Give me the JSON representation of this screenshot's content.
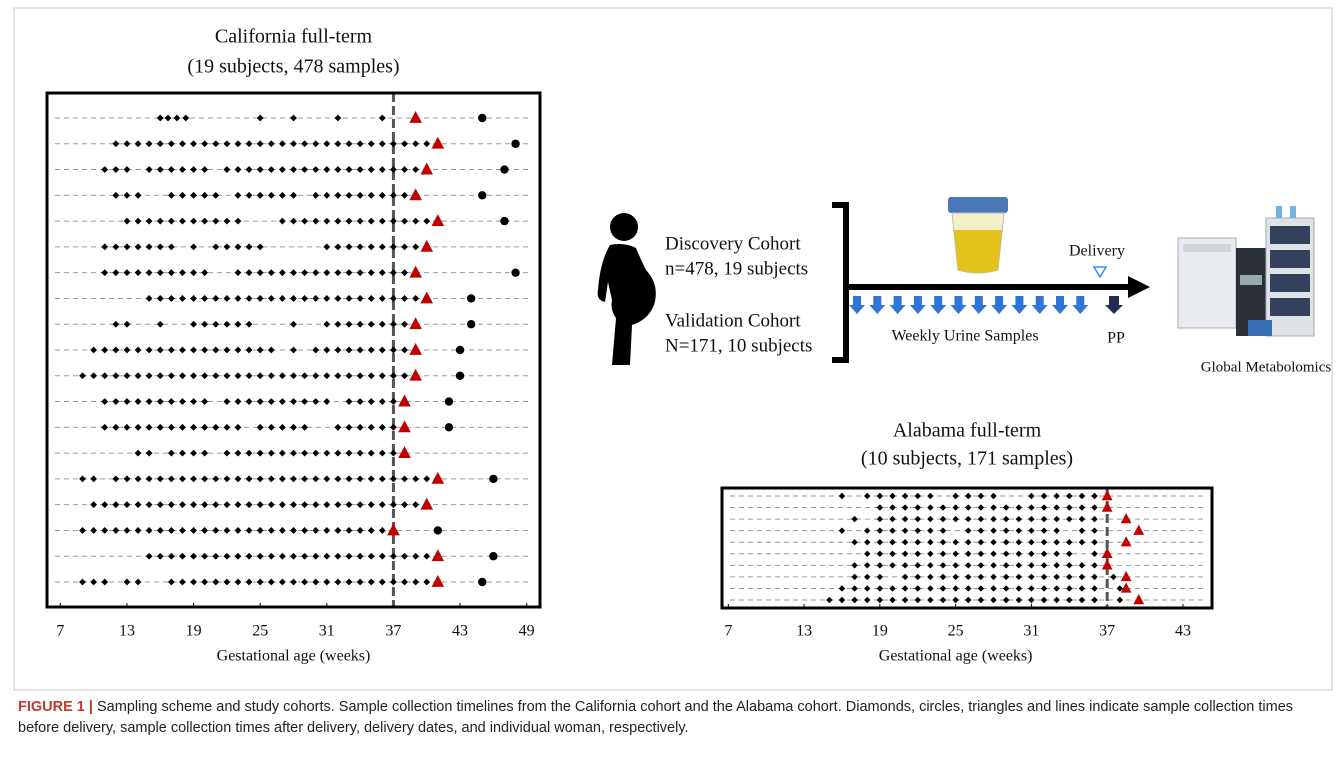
{
  "chart_data": [
    {
      "type": "scatter",
      "title": "California full-term",
      "subtitle": "(19 subjects, 478 samples)",
      "x_label": "Gestational age (weeks)",
      "xlim": [
        5.8,
        50.2
      ],
      "xticks": [
        7,
        13,
        19,
        25,
        31,
        37,
        43,
        49
      ],
      "vline": 37,
      "grid": true,
      "colors": {
        "diamond": "#000000",
        "delivery": "#c00000",
        "postpartum": "#000000"
      },
      "rows": [
        {
          "diamonds": [
            16,
            16.7,
            17.5,
            18.3,
            25,
            28,
            32,
            36
          ],
          "delivery": 39,
          "postpartum": 45
        },
        {
          "diamonds": [
            12,
            13,
            14,
            15,
            16,
            17,
            18,
            19,
            20,
            21,
            22,
            23,
            24,
            25,
            26,
            27,
            28,
            29,
            30,
            31,
            32,
            33,
            34,
            35,
            36,
            37,
            38,
            39,
            40
          ],
          "delivery": 41,
          "postpartum": 48
        },
        {
          "diamonds": [
            11,
            12,
            13,
            15,
            16,
            17,
            18,
            19,
            20,
            22,
            23,
            24,
            25,
            26,
            27,
            28,
            29,
            30,
            31,
            32,
            33,
            34,
            35,
            36,
            37,
            38,
            39
          ],
          "delivery": 40,
          "postpartum": 47
        },
        {
          "diamonds": [
            12,
            13,
            14,
            17,
            18,
            19,
            20,
            21,
            23,
            24,
            25,
            26,
            27,
            28,
            30,
            31,
            32,
            33,
            34,
            35,
            36,
            37,
            38
          ],
          "delivery": 39,
          "postpartum": 45
        },
        {
          "diamonds": [
            13,
            14,
            15,
            16,
            17,
            18,
            19,
            20,
            21,
            22,
            23,
            27,
            28,
            29,
            30,
            31,
            32,
            33,
            34,
            35,
            36,
            37,
            38,
            39,
            40
          ],
          "delivery": 41,
          "postpartum": 47
        },
        {
          "diamonds": [
            11,
            12,
            13,
            14,
            15,
            16,
            17,
            19,
            21,
            22,
            23,
            24,
            25,
            31,
            32,
            33,
            34,
            35,
            36,
            37,
            38,
            39
          ],
          "delivery": 40,
          "postpartum": null
        },
        {
          "diamonds": [
            11,
            12,
            13,
            14,
            15,
            16,
            17,
            18,
            19,
            20,
            23,
            24,
            25,
            26,
            27,
            28,
            29,
            30,
            31,
            32,
            33,
            34,
            35,
            36,
            37,
            38
          ],
          "delivery": 39,
          "postpartum": 48
        },
        {
          "diamonds": [
            15,
            16,
            17,
            18,
            19,
            20,
            21,
            22,
            23,
            24,
            25,
            26,
            27,
            28,
            29,
            30,
            31,
            32,
            33,
            34,
            35,
            36,
            37,
            38,
            39
          ],
          "delivery": 40,
          "postpartum": 44
        },
        {
          "diamonds": [
            12,
            13,
            16,
            19,
            20,
            21,
            22,
            23,
            24,
            28,
            31,
            32,
            33,
            34,
            35,
            36,
            37,
            38
          ],
          "delivery": 39,
          "postpartum": 44
        },
        {
          "diamonds": [
            10,
            11,
            12,
            13,
            14,
            15,
            16,
            17,
            18,
            19,
            20,
            21,
            22,
            23,
            24,
            25,
            26,
            28,
            30,
            31,
            32,
            33,
            34,
            35,
            36,
            37,
            38
          ],
          "delivery": 39,
          "postpartum": 43
        },
        {
          "diamonds": [
            9,
            10,
            11,
            12,
            13,
            14,
            15,
            16,
            17,
            18,
            19,
            20,
            21,
            22,
            23,
            24,
            25,
            26,
            27,
            28,
            29,
            30,
            31,
            32,
            33,
            34,
            35,
            36,
            37,
            38
          ],
          "delivery": 39,
          "postpartum": 43
        },
        {
          "diamonds": [
            11,
            12,
            13,
            14,
            15,
            16,
            17,
            18,
            19,
            20,
            22,
            23,
            24,
            25,
            26,
            27,
            28,
            29,
            30,
            31,
            33,
            34,
            35,
            36,
            37
          ],
          "delivery": 38,
          "postpartum": 42
        },
        {
          "diamonds": [
            11,
            12,
            13,
            14,
            15,
            16,
            17,
            18,
            19,
            20,
            21,
            22,
            23,
            25,
            26,
            27,
            28,
            29,
            32,
            33,
            34,
            35,
            36,
            37
          ],
          "delivery": 38,
          "postpartum": 42
        },
        {
          "diamonds": [
            14,
            15,
            17,
            18,
            19,
            20,
            22,
            23,
            24,
            25,
            26,
            27,
            28,
            29,
            30,
            31,
            32,
            33,
            34,
            35,
            36,
            37
          ],
          "delivery": 38,
          "postpartum": null
        },
        {
          "diamonds": [
            9,
            10,
            12,
            13,
            14,
            15,
            16,
            17,
            18,
            19,
            20,
            21,
            22,
            23,
            24,
            25,
            26,
            27,
            28,
            29,
            30,
            31,
            32,
            33,
            34,
            35,
            36,
            37,
            38,
            39,
            40
          ],
          "delivery": 41,
          "postpartum": 46
        },
        {
          "diamonds": [
            10,
            11,
            12,
            13,
            14,
            15,
            16,
            17,
            18,
            19,
            20,
            21,
            22,
            23,
            24,
            25,
            26,
            27,
            28,
            29,
            30,
            31,
            32,
            33,
            34,
            35,
            36,
            37,
            38,
            39
          ],
          "delivery": 40,
          "postpartum": null
        },
        {
          "diamonds": [
            9,
            10,
            11,
            12,
            13,
            14,
            15,
            16,
            17,
            18,
            19,
            20,
            21,
            22,
            23,
            24,
            25,
            26,
            27,
            28,
            29,
            30,
            31,
            32,
            33,
            34,
            35,
            36
          ],
          "delivery": 37,
          "postpartum": 41
        },
        {
          "diamonds": [
            15,
            16,
            17,
            18,
            19,
            20,
            21,
            22,
            23,
            24,
            25,
            26,
            27,
            28,
            29,
            30,
            31,
            32,
            33,
            34,
            35,
            36,
            37,
            38,
            39,
            40
          ],
          "delivery": 41,
          "postpartum": 46
        },
        {
          "diamonds": [
            9,
            10,
            11,
            13,
            14,
            17,
            18,
            19,
            20,
            21,
            22,
            23,
            24,
            25,
            26,
            27,
            28,
            29,
            30,
            31,
            32,
            33,
            34,
            35,
            36,
            37,
            38,
            39,
            40
          ],
          "delivery": 41,
          "postpartum": 45
        }
      ]
    },
    {
      "type": "scatter",
      "title": "Alabama full-term",
      "subtitle": "(10 subjects, 171 samples)",
      "x_label": "Gestational age (weeks)",
      "xlim": [
        6.5,
        45.3
      ],
      "xticks": [
        7,
        13,
        19,
        25,
        31,
        37,
        43
      ],
      "vline": 37,
      "grid": true,
      "colors": {
        "diamond": "#000000",
        "delivery": "#c00000",
        "postpartum": "#000000"
      },
      "rows": [
        {
          "diamonds": [
            16,
            18,
            19,
            20,
            21,
            22,
            23,
            25,
            26,
            27,
            28,
            31,
            32,
            33,
            34,
            35,
            36
          ],
          "delivery": 37
        },
        {
          "diamonds": [
            19,
            20,
            21,
            22,
            23,
            24,
            25,
            26,
            27,
            28,
            29,
            30,
            31,
            32,
            33,
            34,
            35,
            36
          ],
          "delivery": 37
        },
        {
          "diamonds": [
            17,
            19,
            20,
            21,
            22,
            23,
            24,
            25,
            26,
            27,
            28,
            29,
            30,
            31,
            32,
            33,
            34,
            35,
            36
          ],
          "delivery": 38.5
        },
        {
          "diamonds": [
            16,
            18,
            19,
            20,
            21,
            22,
            23,
            24,
            26,
            27,
            28,
            29,
            30,
            31,
            32,
            33,
            35,
            36
          ],
          "delivery": 39.5
        },
        {
          "diamonds": [
            17,
            18,
            19,
            20,
            21,
            22,
            23,
            24,
            25,
            26,
            27,
            28,
            29,
            30,
            31,
            32,
            33,
            34,
            35,
            36
          ],
          "delivery": 38.5
        },
        {
          "diamonds": [
            18,
            19,
            20,
            21,
            22,
            23,
            24,
            25,
            26,
            27,
            28,
            29,
            30,
            31,
            32,
            33,
            34,
            36
          ],
          "delivery": 37
        },
        {
          "diamonds": [
            17,
            18,
            19,
            20,
            21,
            22,
            23,
            24,
            25,
            26,
            27,
            28,
            29,
            30,
            31,
            32,
            33,
            34,
            35,
            36
          ],
          "delivery": 37
        },
        {
          "diamonds": [
            17,
            18,
            19,
            21,
            22,
            23,
            24,
            25,
            26,
            27,
            28,
            29,
            30,
            31,
            32,
            33,
            34,
            35,
            36,
            37.5
          ],
          "delivery": 38.5
        },
        {
          "diamonds": [
            16,
            17,
            18,
            19,
            20,
            21,
            22,
            23,
            24,
            25,
            26,
            27,
            28,
            29,
            30,
            31,
            32,
            33,
            34,
            35,
            36,
            38
          ],
          "delivery": 38.5
        },
        {
          "diamonds": [
            15,
            16,
            17,
            18,
            19,
            20,
            21,
            22,
            23,
            24,
            25,
            26,
            27,
            28,
            29,
            30,
            31,
            32,
            33,
            34,
            35,
            36,
            38
          ],
          "delivery": 39.5
        }
      ]
    }
  ],
  "diagram": {
    "discovery_title": "Discovery Cohort",
    "discovery_detail": "n=478, 19 subjects",
    "validation_title": "Validation Cohort",
    "validation_detail": "N=171, 10 subjects",
    "delivery": "Delivery",
    "weekly": "Weekly Urine Samples",
    "pp": "PP",
    "metabolomics": "Global Metabolomics"
  },
  "caption": {
    "label": "FIGURE 1 |",
    "text": "Sampling scheme and study cohorts. Sample collection timelines from the California cohort and the Alabama cohort. Diamonds, circles, triangles and lines indicate sample collection times before delivery, sample collection times after delivery, delivery dates, and individual woman, respectively."
  }
}
